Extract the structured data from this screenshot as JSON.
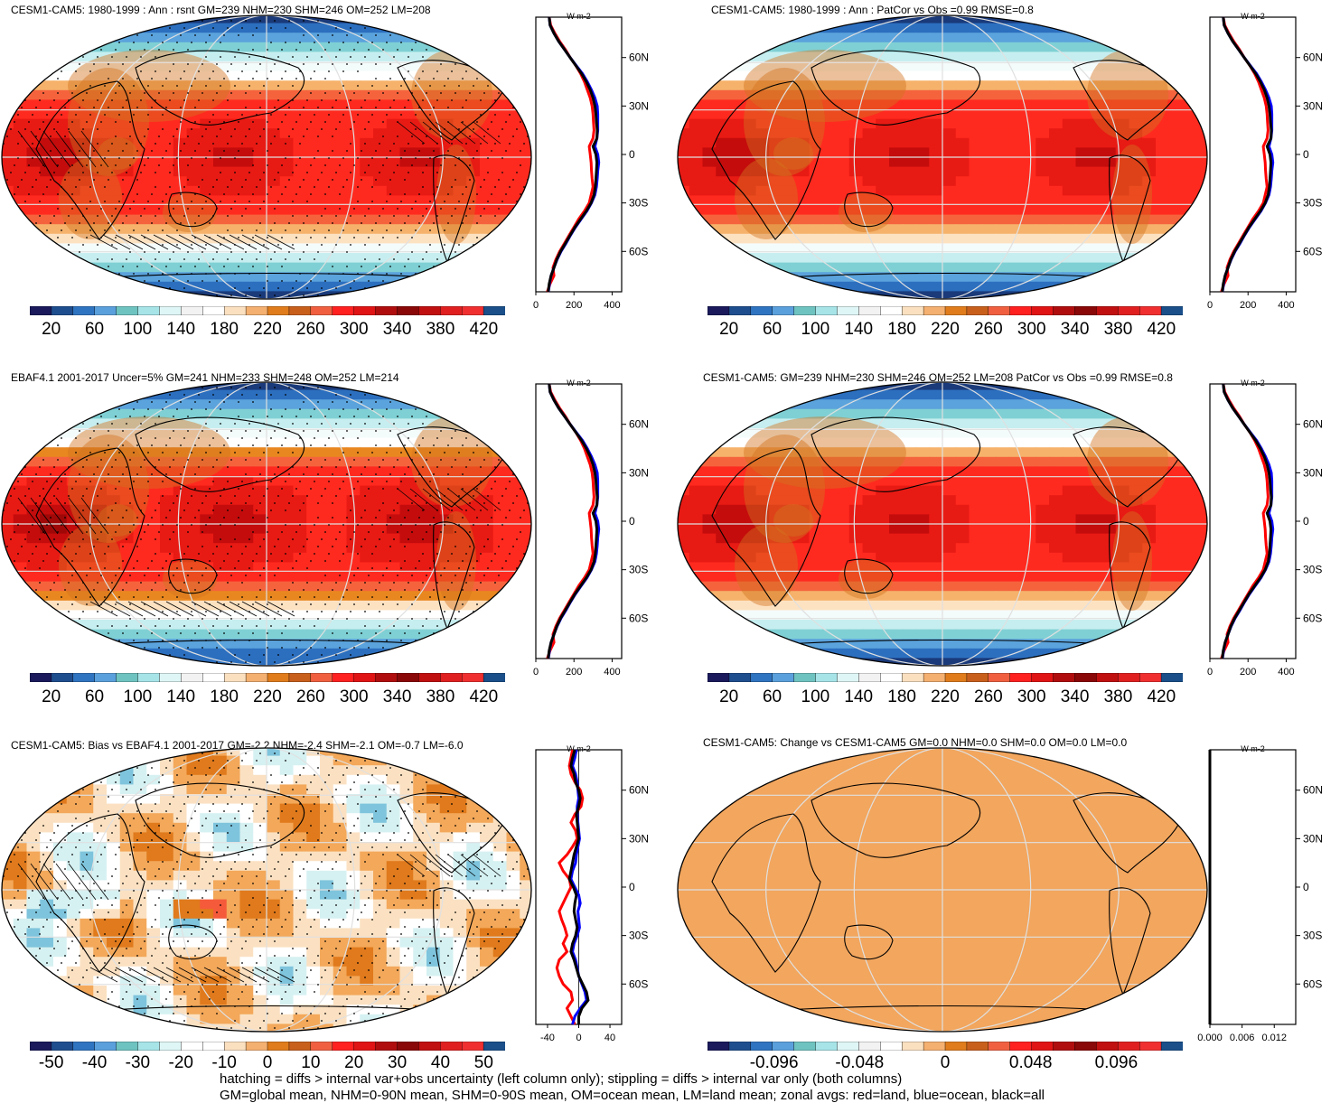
{
  "panels": [
    {
      "title": "CESM1-CAM5: 1980-1999 : Ann : rsnt GM=239 NHM=230 SHM=246 OM=252 LM=208",
      "field": "clim_model",
      "colorbar": "clim",
      "hatching": true,
      "stippling": true,
      "zonal": {
        "xticks": [
          "0",
          "200",
          "400"
        ],
        "xlim": [
          0,
          450
        ],
        "units": "W m-2",
        "yticks": [
          "60N",
          "30N",
          "0",
          "30S",
          "60S"
        ]
      }
    },
    {
      "title": "CESM1-CAM5: 1980-1999 : Ann : PatCor vs Obs =0.99 RMSE=0.8",
      "field": "clim_model",
      "colorbar": "clim",
      "hatching": false,
      "stippling": false,
      "zonal": {
        "xticks": [
          "0",
          "200",
          "400"
        ],
        "xlim": [
          0,
          450
        ],
        "units": "W m-2",
        "yticks": [
          "60N",
          "30N",
          "0",
          "30S",
          "60S"
        ]
      }
    },
    {
      "title": "EBAF4.1 2001-2017 Uncer=5% GM=241 NHM=233 SHM=248 OM=252 LM=214",
      "field": "clim_obs",
      "colorbar": "clim",
      "hatching": true,
      "stippling": true,
      "zonal": {
        "xticks": [
          "0",
          "200",
          "400"
        ],
        "xlim": [
          0,
          450
        ],
        "units": "W m-2",
        "yticks": [
          "60N",
          "30N",
          "0",
          "30S",
          "60S"
        ]
      }
    },
    {
      "title": "CESM1-CAM5: GM=239 NHM=230 SHM=246 OM=252 LM=208 PatCor vs Obs =0.99 RMSE=0.8",
      "field": "clim_model",
      "colorbar": "clim",
      "hatching": false,
      "stippling": false,
      "zonal": {
        "xticks": [
          "0",
          "200",
          "400"
        ],
        "xlim": [
          0,
          450
        ],
        "units": "W m-2",
        "yticks": [
          "60N",
          "30N",
          "0",
          "30S",
          "60S"
        ]
      }
    },
    {
      "title": "CESM1-CAM5: Bias vs EBAF4.1 2001-2017 GM=-2.2 NHM=-2.4 SHM=-2.1 OM=-0.7 LM=-6.0",
      "field": "bias",
      "colorbar": "bias",
      "hatching": true,
      "stippling": true,
      "zonal": {
        "xticks": [
          "-40",
          "0",
          "40"
        ],
        "xlim": [
          -55,
          55
        ],
        "units": "W m-2",
        "yticks": [
          "60N",
          "30N",
          "0",
          "30S",
          "60S"
        ]
      }
    },
    {
      "title": "CESM1-CAM5: Change vs CESM1-CAM5 GM=0.0 NHM=0.0 SHM=0.0 OM=0.0 LM=0.0",
      "field": "zero",
      "colorbar": "change",
      "hatching": false,
      "stippling": false,
      "zonal": {
        "xticks": [
          "0.000",
          "0.006",
          "0.012"
        ],
        "xlim": [
          0,
          0.016
        ],
        "units": "W m-2",
        "yticks": [
          "60N",
          "30N",
          "0",
          "30S",
          "60S"
        ]
      }
    }
  ],
  "colorbars": {
    "clim": {
      "labels": [
        "20",
        "60",
        "100",
        "140",
        "180",
        "220",
        "260",
        "300",
        "340",
        "380",
        "420"
      ]
    },
    "bias": {
      "labels": [
        "-50",
        "-40",
        "-30",
        "-20",
        "-10",
        "0",
        "10",
        "20",
        "30",
        "40",
        "50"
      ]
    },
    "change": {
      "labels": [
        "-0.096",
        "-0.048",
        "0",
        "0.048",
        "0.096"
      ]
    }
  },
  "colors": {
    "clim_palette": [
      "#1a1a5c",
      "#1f4e8f",
      "#2f74c0",
      "#5aa0dc",
      "#6ec3c0",
      "#a6e4e8",
      "#dff6f6",
      "#f2f2f2",
      "#ffffff",
      "#fbe0c0",
      "#f4b070",
      "#e07c1c",
      "#c8601c",
      "#f06040",
      "#ff2020",
      "#e01414",
      "#b00e0e",
      "#8a0808",
      "#c01010",
      "#e02020",
      "#f03030",
      "#1a4f8a"
    ],
    "bias_palette": [
      "#1a1a5c",
      "#1f4e8f",
      "#2f74c0",
      "#5aa0dc",
      "#6ec3c0",
      "#a6e4e8",
      "#dff6f6",
      "#ffffff",
      "#ffffff",
      "#fbe0c0",
      "#f4b070",
      "#e07c1c",
      "#c8601c",
      "#f06040",
      "#ff2020",
      "#e01414",
      "#b00e0e",
      "#8a0808",
      "#c01010",
      "#e02020",
      "#f03030",
      "#1a4f8a"
    ],
    "land": "#d2741e",
    "red": "#ff0000",
    "blue": "#0000ff",
    "black": "#000000"
  },
  "zonal_profiles": {
    "lats": [
      85,
      80,
      75,
      70,
      65,
      60,
      55,
      50,
      45,
      40,
      35,
      30,
      25,
      20,
      15,
      10,
      5,
      0,
      -5,
      -10,
      -15,
      -20,
      -25,
      -30,
      -35,
      -40,
      -45,
      -50,
      -55,
      -60,
      -65,
      -70,
      -75,
      -80,
      -85
    ],
    "clim_all": [
      70,
      75,
      95,
      120,
      150,
      180,
      210,
      240,
      265,
      285,
      300,
      310,
      315,
      318,
      322,
      320,
      300,
      315,
      320,
      318,
      315,
      312,
      305,
      290,
      265,
      235,
      205,
      180,
      155,
      130,
      110,
      95,
      80,
      70,
      65
    ],
    "clim_land": [
      70,
      78,
      100,
      125,
      155,
      180,
      210,
      235,
      255,
      270,
      285,
      295,
      300,
      302,
      305,
      300,
      280,
      285,
      290,
      292,
      295,
      300,
      290,
      280,
      255,
      225,
      200,
      175,
      150,
      125,
      105,
      90,
      95,
      75,
      60
    ],
    "clim_ocean": [
      70,
      75,
      95,
      120,
      150,
      180,
      212,
      245,
      270,
      292,
      310,
      322,
      325,
      325,
      325,
      320,
      310,
      325,
      330,
      325,
      322,
      318,
      310,
      292,
      268,
      238,
      208,
      182,
      158,
      132,
      112,
      95,
      80,
      72,
      66
    ],
    "bias_all": [
      -5,
      -8,
      -10,
      -6,
      -4,
      0,
      2,
      0,
      -3,
      -2,
      -1,
      0,
      -3,
      -6,
      -8,
      -10,
      -12,
      -7,
      -3,
      -5,
      -6,
      -4,
      -2,
      -4,
      -8,
      -10,
      -6,
      -3,
      0,
      5,
      10,
      12,
      4,
      0,
      0
    ],
    "bias_land": [
      -8,
      -10,
      -12,
      -10,
      -5,
      2,
      5,
      3,
      -5,
      -10,
      -4,
      -2,
      -8,
      -15,
      -25,
      -20,
      -12,
      -10,
      -15,
      -20,
      -25,
      -22,
      -18,
      -15,
      -20,
      -15,
      -25,
      -28,
      -25,
      -20,
      -10,
      -8,
      -15,
      -10,
      -5
    ],
    "bias_ocean": [
      -3,
      -5,
      -8,
      -4,
      -2,
      -1,
      0,
      -2,
      -2,
      -1,
      0,
      1,
      -1,
      -3,
      -4,
      -8,
      -10,
      -5,
      0,
      2,
      -1,
      0,
      1,
      -2,
      -6,
      -8,
      -4,
      -2,
      0,
      4,
      8,
      10,
      2,
      -5,
      -8
    ],
    "change_all": [
      0,
      0,
      0,
      0,
      0,
      0,
      0,
      0,
      0,
      0,
      0,
      0,
      0,
      0,
      0,
      0,
      0,
      0,
      0,
      0,
      0,
      0,
      0,
      0,
      0,
      0,
      0,
      0,
      0,
      0,
      0,
      0,
      0,
      0,
      0
    ]
  },
  "footer": {
    "line1": "hatching = diffs > internal var+obs uncertainty (left column only); stippling = diffs > internal var only (both columns)",
    "line2": "GM=global mean, NHM=0-90N mean, SHM=0-90S mean, OM=ocean mean, LM=land mean; zonal avgs: red=land, blue=ocean, black=all"
  }
}
